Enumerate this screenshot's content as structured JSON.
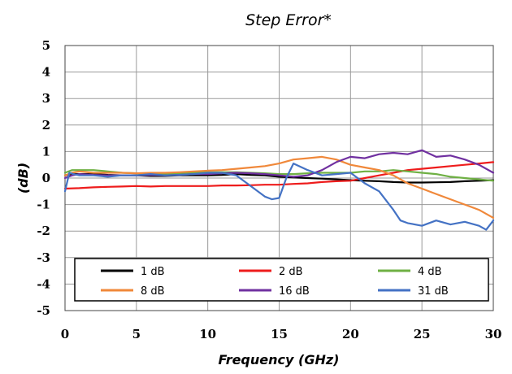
{
  "chart_data": {
    "type": "line",
    "title": "Step Error*",
    "xlabel": "Frequency (GHz)",
    "ylabel": "(dB)",
    "xlim": [
      0,
      30
    ],
    "ylim": [
      -5,
      5
    ],
    "x_ticks": [
      0,
      5,
      10,
      15,
      20,
      25,
      30
    ],
    "y_ticks": [
      5,
      4,
      3,
      2,
      1,
      0,
      -1,
      -2,
      -3,
      -4,
      -5
    ],
    "y_tick_labels": [
      "5",
      "4",
      "3",
      "2",
      "1",
      "0",
      "-1",
      "-2",
      "-3",
      "-4",
      "-5"
    ],
    "grid": true,
    "legend_position": "bottom",
    "series": [
      {
        "name": "1 dB",
        "color": "#000000",
        "x": [
          0,
          0.5,
          1,
          2,
          3,
          4,
          5,
          6,
          7,
          8,
          9,
          10,
          11,
          12,
          13,
          14,
          15,
          16,
          17,
          18,
          19,
          20,
          21,
          22,
          23,
          24,
          25,
          26,
          27,
          28,
          29,
          30
        ],
        "y": [
          0.1,
          0.15,
          0.15,
          0.15,
          0.12,
          0.1,
          0.1,
          0.08,
          0.08,
          0.1,
          0.1,
          0.1,
          0.12,
          0.15,
          0.12,
          0.1,
          0.05,
          0.02,
          0.0,
          -0.02,
          -0.05,
          -0.08,
          -0.1,
          -0.12,
          -0.15,
          -0.17,
          -0.17,
          -0.16,
          -0.15,
          -0.12,
          -0.1,
          -0.08
        ]
      },
      {
        "name": "2 dB",
        "color": "#ee1c1c",
        "x": [
          0,
          1,
          2,
          3,
          4,
          5,
          6,
          7,
          8,
          9,
          10,
          11,
          12,
          13,
          14,
          15,
          16,
          17,
          18,
          19,
          20,
          21,
          22,
          23,
          24,
          25,
          26,
          27,
          28,
          29,
          30
        ],
        "y": [
          -0.4,
          -0.38,
          -0.35,
          -0.33,
          -0.32,
          -0.3,
          -0.32,
          -0.3,
          -0.3,
          -0.3,
          -0.3,
          -0.28,
          -0.28,
          -0.27,
          -0.25,
          -0.25,
          -0.22,
          -0.2,
          -0.15,
          -0.12,
          -0.1,
          0.0,
          0.1,
          0.2,
          0.3,
          0.35,
          0.4,
          0.45,
          0.5,
          0.55,
          0.6
        ]
      },
      {
        "name": "4 dB",
        "color": "#6fb044",
        "x": [
          0,
          0.5,
          1,
          2,
          3,
          4,
          5,
          6,
          7,
          8,
          9,
          10,
          11,
          12,
          13,
          14,
          15,
          16,
          17,
          18,
          19,
          20,
          21,
          22,
          23,
          24,
          25,
          26,
          27,
          28,
          29,
          30
        ],
        "y": [
          0.2,
          0.3,
          0.3,
          0.3,
          0.25,
          0.2,
          0.18,
          0.15,
          0.15,
          0.18,
          0.2,
          0.22,
          0.22,
          0.22,
          0.2,
          0.18,
          0.15,
          0.15,
          0.18,
          0.2,
          0.2,
          0.2,
          0.25,
          0.25,
          0.3,
          0.25,
          0.2,
          0.15,
          0.05,
          0.0,
          -0.05,
          -0.1
        ]
      },
      {
        "name": "8 dB",
        "color": "#f0883a",
        "x": [
          0,
          0.5,
          1,
          2,
          3,
          4,
          5,
          6,
          7,
          8,
          9,
          10,
          11,
          12,
          13,
          14,
          15,
          16,
          17,
          18,
          19,
          20,
          21,
          22,
          23,
          24,
          25,
          26,
          27,
          28,
          29,
          30
        ],
        "y": [
          0.1,
          0.2,
          0.25,
          0.2,
          0.2,
          0.2,
          0.18,
          0.2,
          0.2,
          0.22,
          0.25,
          0.28,
          0.3,
          0.35,
          0.4,
          0.45,
          0.55,
          0.7,
          0.75,
          0.8,
          0.7,
          0.5,
          0.4,
          0.3,
          0.1,
          -0.2,
          -0.4,
          -0.6,
          -0.8,
          -1.0,
          -1.2,
          -1.5
        ]
      },
      {
        "name": "16 dB",
        "color": "#7030a0",
        "x": [
          0,
          0.5,
          1,
          2,
          3,
          4,
          5,
          6,
          7,
          8,
          9,
          10,
          11,
          12,
          13,
          14,
          15,
          16,
          17,
          18,
          19,
          20,
          21,
          22,
          23,
          24,
          25,
          26,
          27,
          28,
          29,
          30
        ],
        "y": [
          0.0,
          0.1,
          0.15,
          0.12,
          0.1,
          0.1,
          0.1,
          0.12,
          0.1,
          0.12,
          0.15,
          0.15,
          0.18,
          0.2,
          0.18,
          0.15,
          0.1,
          0.05,
          0.1,
          0.3,
          0.6,
          0.8,
          0.75,
          0.9,
          0.95,
          0.9,
          1.05,
          0.8,
          0.85,
          0.7,
          0.5,
          0.2
        ]
      },
      {
        "name": "31 dB",
        "color": "#4472c4",
        "x": [
          0,
          0.3,
          0.6,
          1,
          2,
          3,
          4,
          5,
          6,
          7,
          8,
          9,
          10,
          11,
          12,
          13,
          14,
          14.5,
          15,
          15.5,
          16,
          17,
          18,
          19,
          20,
          21,
          22,
          23,
          23.5,
          24,
          25,
          26,
          27,
          28,
          29,
          29.5,
          30
        ],
        "y": [
          -0.5,
          0.2,
          0.15,
          0.1,
          0.1,
          0.05,
          0.1,
          0.1,
          0.15,
          0.1,
          0.12,
          0.15,
          0.2,
          0.2,
          0.1,
          -0.3,
          -0.7,
          -0.8,
          -0.75,
          0.0,
          0.55,
          0.3,
          0.1,
          0.15,
          0.2,
          -0.2,
          -0.5,
          -1.2,
          -1.6,
          -1.7,
          -1.8,
          -1.6,
          -1.75,
          -1.65,
          -1.8,
          -1.95,
          -1.6
        ]
      }
    ]
  }
}
